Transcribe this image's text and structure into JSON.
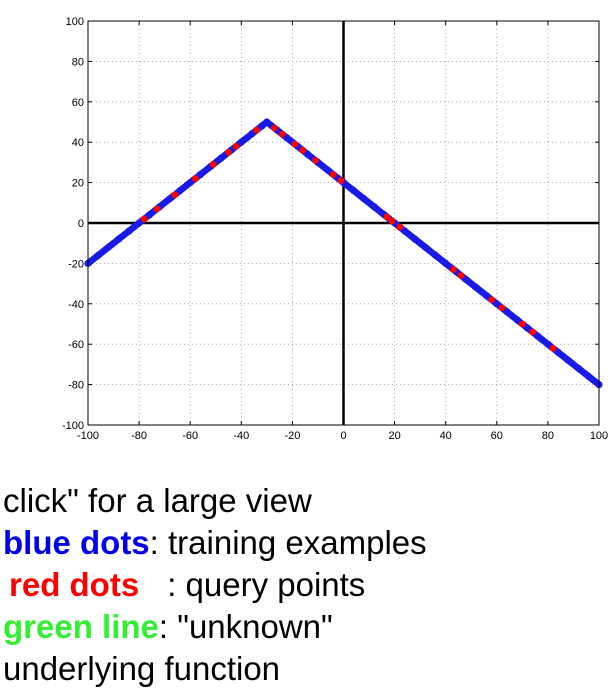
{
  "chart_data": {
    "type": "scatter",
    "title": "",
    "xlabel": "",
    "ylabel": "",
    "xlim": [
      -100,
      100
    ],
    "ylim": [
      -100,
      100
    ],
    "xticks": [
      -100,
      -80,
      -60,
      -40,
      -20,
      0,
      20,
      40,
      60,
      80,
      100
    ],
    "yticks": [
      -100,
      -80,
      -60,
      -40,
      -20,
      0,
      20,
      40,
      60,
      80,
      100
    ],
    "grid": true,
    "axes_lines_through_origin": true,
    "function_vertex": [
      -30,
      50
    ],
    "series": [
      {
        "color": "#1a1ae6",
        "role": "training",
        "points": [
          [
            -100,
            -20
          ],
          [
            -96,
            -16
          ],
          [
            -92,
            -12
          ],
          [
            -88,
            -8
          ],
          [
            -84,
            -4
          ],
          [
            -80,
            0
          ],
          [
            -76,
            4
          ],
          [
            -72,
            8
          ],
          [
            -68,
            12
          ],
          [
            -64,
            16
          ],
          [
            -60,
            20
          ],
          [
            -56,
            24
          ],
          [
            -52,
            28
          ],
          [
            -48,
            32
          ],
          [
            -44,
            36
          ],
          [
            -40,
            40
          ],
          [
            -36,
            44
          ],
          [
            -32,
            48
          ],
          [
            -30,
            50
          ],
          [
            -26,
            46
          ],
          [
            -22,
            42
          ],
          [
            -18,
            38
          ],
          [
            -14,
            34
          ],
          [
            -10,
            30
          ],
          [
            -6,
            26
          ],
          [
            -2,
            22
          ],
          [
            0,
            20
          ],
          [
            4,
            16
          ],
          [
            8,
            12
          ],
          [
            12,
            8
          ],
          [
            16,
            4
          ],
          [
            20,
            0
          ],
          [
            24,
            -4
          ],
          [
            28,
            -8
          ],
          [
            32,
            -12
          ],
          [
            36,
            -16
          ],
          [
            40,
            -20
          ],
          [
            44,
            -24
          ],
          [
            48,
            -28
          ],
          [
            52,
            -32
          ],
          [
            56,
            -36
          ],
          [
            60,
            -40
          ],
          [
            64,
            -44
          ],
          [
            68,
            -48
          ],
          [
            72,
            -52
          ],
          [
            76,
            -56
          ],
          [
            80,
            -60
          ],
          [
            84,
            -64
          ],
          [
            88,
            -68
          ],
          [
            92,
            -72
          ],
          [
            96,
            -76
          ],
          [
            100,
            -80
          ]
        ]
      },
      {
        "color": "#ff0000",
        "role": "query",
        "points": [
          [
            -78,
            2
          ],
          [
            -73,
            7
          ],
          [
            -66,
            14
          ],
          [
            -58,
            22
          ],
          [
            -51,
            29
          ],
          [
            -45,
            35
          ],
          [
            -42,
            38
          ],
          [
            -34,
            46
          ],
          [
            -27,
            47
          ],
          [
            -24,
            44
          ],
          [
            -19,
            39
          ],
          [
            -16,
            36
          ],
          [
            -11,
            31
          ],
          [
            -4,
            24
          ],
          [
            -1,
            21
          ],
          [
            17,
            3
          ],
          [
            19,
            1
          ],
          [
            22,
            -2
          ],
          [
            43,
            -23
          ],
          [
            46,
            -26
          ],
          [
            58,
            -38
          ],
          [
            62,
            -42
          ],
          [
            70,
            -50
          ],
          [
            74,
            -54
          ],
          [
            82,
            -62
          ]
        ]
      }
    ]
  },
  "caption": {
    "line1": "click\" for a large view",
    "blue_dots": "blue dots",
    "blue_rest": ": training examples",
    "red_dots": "red dots",
    "red_rest": ": query points",
    "green_line": "green line",
    "green_rest": ": \"unknown\"",
    "line5": "underlying function",
    "colors": {
      "blue": "#0000ee",
      "red": "#ff0000",
      "green": "#33ee33"
    }
  }
}
